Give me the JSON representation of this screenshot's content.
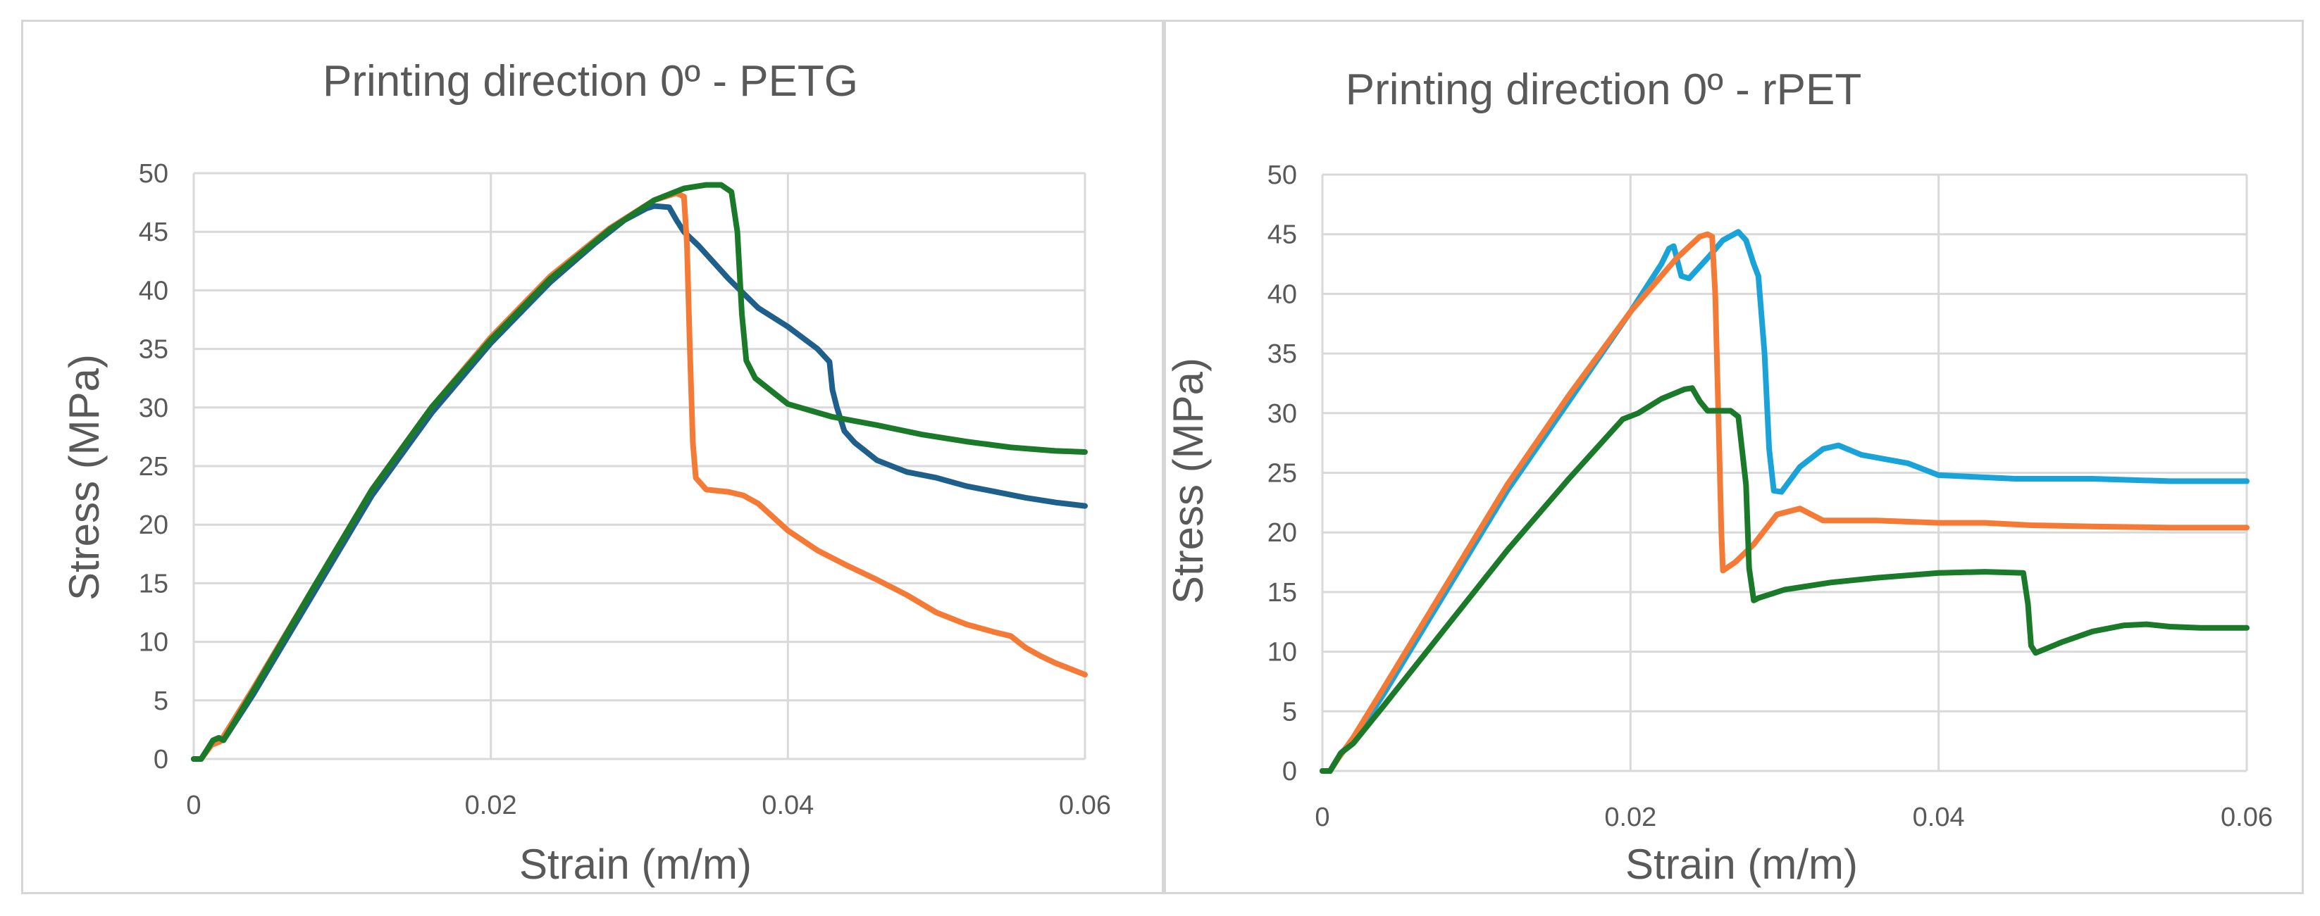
{
  "chart_data": [
    {
      "type": "line",
      "title": "Printing direction 0º - PETG",
      "xlabel": "Strain (m/m)",
      "ylabel": "Stress (MPa)",
      "xlim": [
        0,
        0.06
      ],
      "ylim": [
        0,
        50
      ],
      "xticks": [
        0,
        0.02,
        0.04,
        0.06
      ],
      "xtick_labels": [
        "0",
        "0.02",
        "0.04",
        "0.06"
      ],
      "yticks": [
        0,
        5,
        10,
        15,
        20,
        25,
        30,
        35,
        40,
        45,
        50
      ],
      "ytick_labels": [
        "0",
        "5",
        "10",
        "15",
        "20",
        "25",
        "30",
        "35",
        "40",
        "45",
        "50"
      ],
      "grid": true,
      "legend": "none",
      "series": [
        {
          "name": "blue",
          "color": "#1f5f8b",
          "points": [
            [
              0,
              0
            ],
            [
              0.0005,
              0
            ],
            [
              0.001,
              1
            ],
            [
              0.0013,
              1.6
            ],
            [
              0.0017,
              1.8
            ],
            [
              0.002,
              1.6
            ],
            [
              0.004,
              5.5
            ],
            [
              0.008,
              14
            ],
            [
              0.012,
              22.5
            ],
            [
              0.016,
              29.5
            ],
            [
              0.02,
              35.5
            ],
            [
              0.024,
              40.7
            ],
            [
              0.027,
              44
            ],
            [
              0.029,
              46
            ],
            [
              0.0305,
              47
            ],
            [
              0.031,
              47.2
            ],
            [
              0.032,
              47.1
            ],
            [
              0.0325,
              46
            ],
            [
              0.033,
              45
            ],
            [
              0.034,
              43.8
            ],
            [
              0.036,
              41
            ],
            [
              0.038,
              38.5
            ],
            [
              0.04,
              36.9
            ],
            [
              0.042,
              35
            ],
            [
              0.0428,
              33.9
            ],
            [
              0.043,
              31.5
            ],
            [
              0.0433,
              30
            ],
            [
              0.0438,
              28
            ],
            [
              0.0445,
              27
            ],
            [
              0.046,
              25.5
            ],
            [
              0.048,
              24.5
            ],
            [
              0.05,
              24
            ],
            [
              0.052,
              23.3
            ],
            [
              0.054,
              22.8
            ],
            [
              0.056,
              22.3
            ],
            [
              0.058,
              21.9
            ],
            [
              0.06,
              21.6
            ]
          ]
        },
        {
          "name": "orange",
          "color": "#f47a36",
          "points": [
            [
              0,
              0
            ],
            [
              0.0005,
              0
            ],
            [
              0.0012,
              1.2
            ],
            [
              0.0018,
              1.5
            ],
            [
              0.004,
              6
            ],
            [
              0.008,
              14.5
            ],
            [
              0.012,
              23
            ],
            [
              0.016,
              30
            ],
            [
              0.02,
              36
            ],
            [
              0.024,
              41.2
            ],
            [
              0.028,
              45.3
            ],
            [
              0.031,
              47.7
            ],
            [
              0.0325,
              48.3
            ],
            [
              0.033,
              48
            ],
            [
              0.0332,
              44
            ],
            [
              0.0334,
              35
            ],
            [
              0.0336,
              27
            ],
            [
              0.0338,
              24
            ],
            [
              0.0345,
              23
            ],
            [
              0.036,
              22.8
            ],
            [
              0.037,
              22.5
            ],
            [
              0.038,
              21.8
            ],
            [
              0.04,
              19.5
            ],
            [
              0.042,
              17.8
            ],
            [
              0.044,
              16.5
            ],
            [
              0.046,
              15.3
            ],
            [
              0.048,
              14
            ],
            [
              0.05,
              12.5
            ],
            [
              0.052,
              11.5
            ],
            [
              0.054,
              10.8
            ],
            [
              0.055,
              10.5
            ],
            [
              0.056,
              9.5
            ],
            [
              0.057,
              8.8
            ],
            [
              0.058,
              8.2
            ],
            [
              0.06,
              7.2
            ]
          ]
        },
        {
          "name": "green",
          "color": "#1a7a2a",
          "points": [
            [
              0,
              0
            ],
            [
              0.0005,
              0
            ],
            [
              0.001,
              1
            ],
            [
              0.0013,
              1.6
            ],
            [
              0.0017,
              1.8
            ],
            [
              0.002,
              1.6
            ],
            [
              0.004,
              5.8
            ],
            [
              0.008,
              14.5
            ],
            [
              0.012,
              23
            ],
            [
              0.016,
              30
            ],
            [
              0.02,
              35.8
            ],
            [
              0.024,
              41
            ],
            [
              0.028,
              45.2
            ],
            [
              0.031,
              47.7
            ],
            [
              0.033,
              48.7
            ],
            [
              0.0345,
              49
            ],
            [
              0.0355,
              49
            ],
            [
              0.0362,
              48.4
            ],
            [
              0.0366,
              45
            ],
            [
              0.0369,
              38
            ],
            [
              0.0372,
              34
            ],
            [
              0.0378,
              32.5
            ],
            [
              0.04,
              30.3
            ],
            [
              0.043,
              29.2
            ],
            [
              0.046,
              28.5
            ],
            [
              0.049,
              27.7
            ],
            [
              0.052,
              27.1
            ],
            [
              0.055,
              26.6
            ],
            [
              0.058,
              26.3
            ],
            [
              0.06,
              26.2
            ]
          ]
        }
      ]
    },
    {
      "type": "line",
      "title": "Printing direction 0º - rPET",
      "xlabel": "Strain (m/m)",
      "ylabel": "Stress (MPa)",
      "xlim": [
        0,
        0.06
      ],
      "ylim": [
        0,
        50
      ],
      "xticks": [
        0,
        0.02,
        0.04,
        0.06
      ],
      "xtick_labels": [
        "0",
        "0.02",
        "0.04",
        "0.06"
      ],
      "yticks": [
        0,
        5,
        10,
        15,
        20,
        25,
        30,
        35,
        40,
        45,
        50
      ],
      "ytick_labels": [
        "0",
        "5",
        "10",
        "15",
        "20",
        "25",
        "30",
        "35",
        "40",
        "45",
        "50"
      ],
      "grid": true,
      "legend": "none",
      "series": [
        {
          "name": "light-blue",
          "color": "#1aa3d9",
          "points": [
            [
              0,
              0
            ],
            [
              0.0005,
              0
            ],
            [
              0.0012,
              1.5
            ],
            [
              0.002,
              2.5
            ],
            [
              0.004,
              6.5
            ],
            [
              0.008,
              15
            ],
            [
              0.012,
              23.5
            ],
            [
              0.016,
              31
            ],
            [
              0.02,
              38.5
            ],
            [
              0.022,
              42.5
            ],
            [
              0.0225,
              43.8
            ],
            [
              0.0228,
              44
            ],
            [
              0.0233,
              41.5
            ],
            [
              0.0238,
              41.3
            ],
            [
              0.025,
              43
            ],
            [
              0.026,
              44.5
            ],
            [
              0.027,
              45.2
            ],
            [
              0.0275,
              44.5
            ],
            [
              0.028,
              42.5
            ],
            [
              0.0283,
              41.5
            ],
            [
              0.0287,
              35
            ],
            [
              0.029,
              27
            ],
            [
              0.0293,
              23.5
            ],
            [
              0.0298,
              23.4
            ],
            [
              0.031,
              25.5
            ],
            [
              0.0325,
              27
            ],
            [
              0.0335,
              27.3
            ],
            [
              0.035,
              26.5
            ],
            [
              0.038,
              25.8
            ],
            [
              0.04,
              24.8
            ],
            [
              0.045,
              24.5
            ],
            [
              0.05,
              24.5
            ],
            [
              0.055,
              24.3
            ],
            [
              0.06,
              24.3
            ]
          ]
        },
        {
          "name": "orange",
          "color": "#f47a36",
          "points": [
            [
              0,
              0
            ],
            [
              0.0005,
              0
            ],
            [
              0.001,
              1
            ],
            [
              0.002,
              2.8
            ],
            [
              0.004,
              7
            ],
            [
              0.008,
              15.5
            ],
            [
              0.012,
              24
            ],
            [
              0.016,
              31.5
            ],
            [
              0.02,
              38.5
            ],
            [
              0.023,
              43
            ],
            [
              0.0245,
              44.8
            ],
            [
              0.025,
              45
            ],
            [
              0.0253,
              44.8
            ],
            [
              0.0255,
              40
            ],
            [
              0.0257,
              30
            ],
            [
              0.0259,
              20
            ],
            [
              0.026,
              16.8
            ],
            [
              0.0268,
              17.5
            ],
            [
              0.028,
              19
            ],
            [
              0.0295,
              21.5
            ],
            [
              0.031,
              22
            ],
            [
              0.0325,
              21
            ],
            [
              0.036,
              21
            ],
            [
              0.04,
              20.8
            ],
            [
              0.043,
              20.8
            ],
            [
              0.046,
              20.6
            ],
            [
              0.05,
              20.5
            ],
            [
              0.055,
              20.4
            ],
            [
              0.06,
              20.4
            ]
          ]
        },
        {
          "name": "green",
          "color": "#1a7a2a",
          "points": [
            [
              0,
              0
            ],
            [
              0.0005,
              0
            ],
            [
              0.0012,
              1.5
            ],
            [
              0.002,
              2.3
            ],
            [
              0.004,
              5.5
            ],
            [
              0.008,
              12
            ],
            [
              0.012,
              18.5
            ],
            [
              0.016,
              24.5
            ],
            [
              0.0195,
              29.5
            ],
            [
              0.0205,
              30
            ],
            [
              0.022,
              31.2
            ],
            [
              0.0235,
              32
            ],
            [
              0.024,
              32.1
            ],
            [
              0.0245,
              31
            ],
            [
              0.025,
              30.2
            ],
            [
              0.0265,
              30.2
            ],
            [
              0.027,
              29.7
            ],
            [
              0.0275,
              24
            ],
            [
              0.0277,
              17
            ],
            [
              0.028,
              14.3
            ],
            [
              0.0283,
              14.5
            ],
            [
              0.03,
              15.2
            ],
            [
              0.033,
              15.8
            ],
            [
              0.036,
              16.2
            ],
            [
              0.04,
              16.6
            ],
            [
              0.043,
              16.7
            ],
            [
              0.0455,
              16.6
            ],
            [
              0.0458,
              14
            ],
            [
              0.046,
              10.5
            ],
            [
              0.0463,
              9.9
            ],
            [
              0.048,
              10.8
            ],
            [
              0.05,
              11.7
            ],
            [
              0.052,
              12.2
            ],
            [
              0.0535,
              12.3
            ],
            [
              0.055,
              12.1
            ],
            [
              0.057,
              12
            ],
            [
              0.06,
              12
            ]
          ]
        }
      ]
    }
  ]
}
